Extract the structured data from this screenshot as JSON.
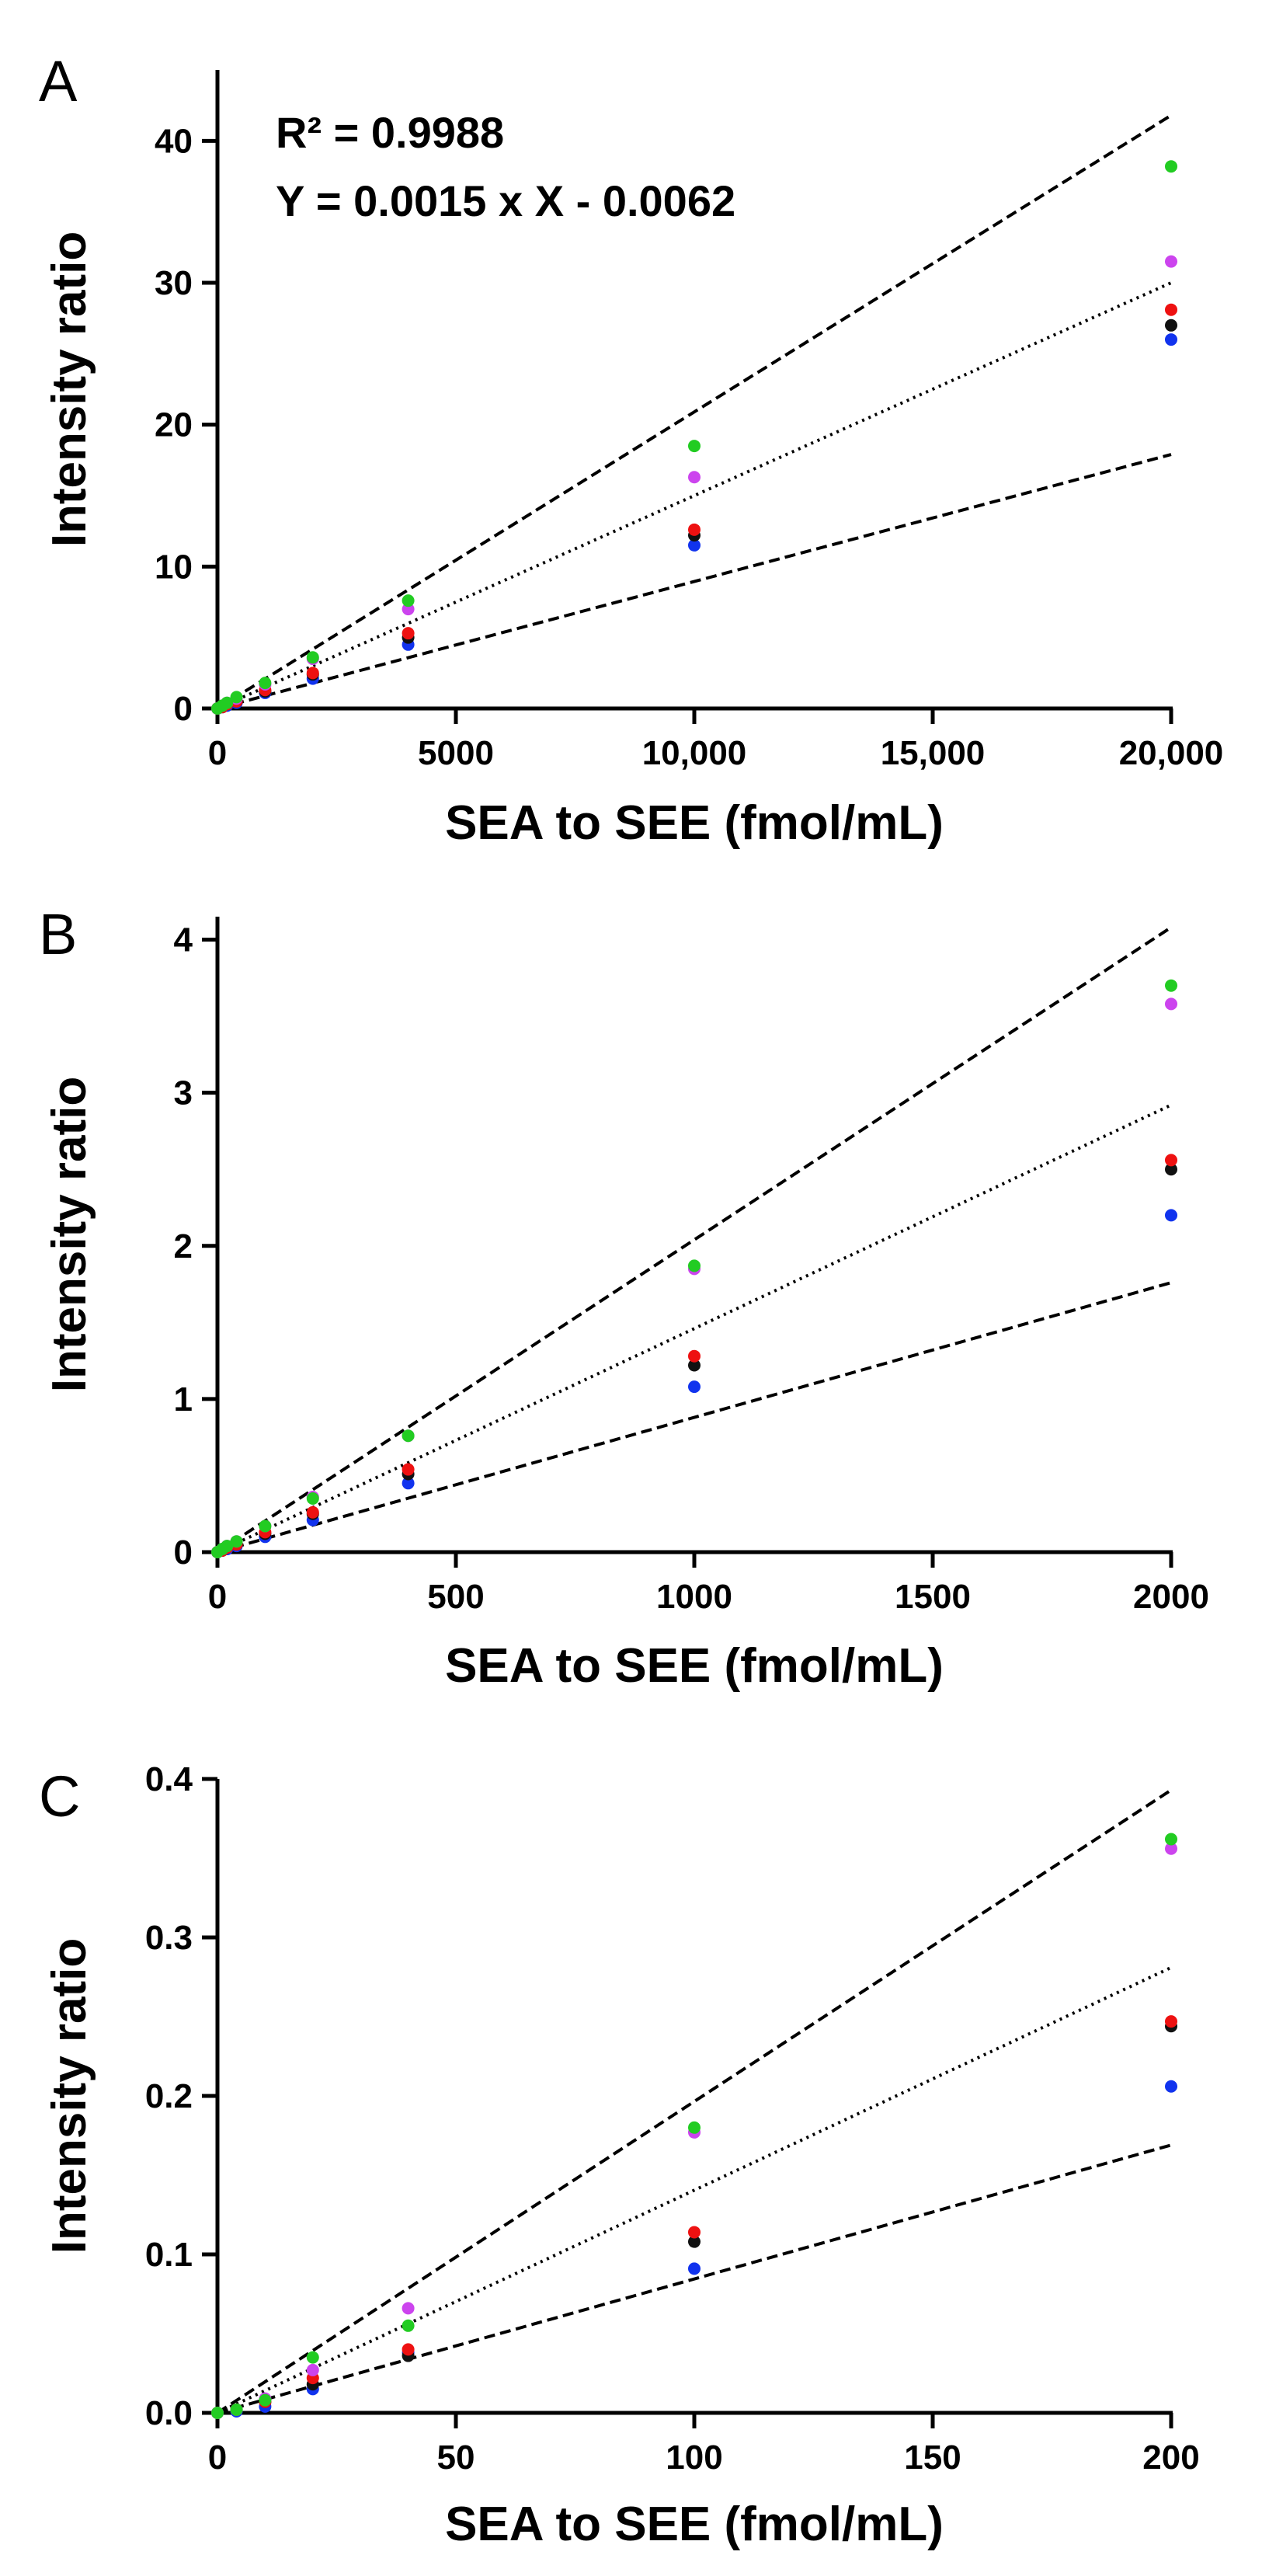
{
  "chart_data": [
    {
      "type": "scatter",
      "panel_label": "A",
      "xlabel": "SEA to SEE (fmol/mL)",
      "ylabel": "Intensity ratio",
      "xlim": [
        0,
        20000
      ],
      "ylim": [
        0,
        45
      ],
      "xticks": [
        0,
        5000,
        10000,
        15000,
        20000
      ],
      "xtick_labels": [
        "0",
        "5000",
        "10,000",
        "15,000",
        "20,000"
      ],
      "yticks": [
        0,
        10,
        20,
        30,
        40
      ],
      "ytick_labels": [
        "0",
        "10",
        "20",
        "30",
        "40"
      ],
      "annotations": [
        "R² = 0.9988",
        "Y = 0.0015 x X - 0.0062"
      ],
      "fit_lines": [
        {
          "style": "dashed",
          "points": [
            [
              0,
              0
            ],
            [
              20000,
              41.8
            ]
          ]
        },
        {
          "style": "dotted",
          "points": [
            [
              0,
              0
            ],
            [
              20000,
              30.0
            ]
          ]
        },
        {
          "style": "dashed",
          "points": [
            [
              0,
              0
            ],
            [
              20000,
              17.9
            ]
          ]
        }
      ],
      "series": [
        {
          "color": "#22cc22",
          "x": [
            0,
            100,
            200,
            400,
            1000,
            2000,
            4000,
            10000,
            20000
          ],
          "y": [
            0,
            0.2,
            0.4,
            0.8,
            1.8,
            3.6,
            7.6,
            18.5,
            38.2
          ]
        },
        {
          "color": "#cc44ee",
          "x": [
            0,
            100,
            200,
            400,
            1000,
            2000,
            4000,
            10000,
            20000
          ],
          "y": [
            0,
            0.2,
            0.4,
            0.7,
            1.7,
            3.5,
            7.0,
            16.3,
            31.5
          ]
        },
        {
          "color": "#ee1111",
          "x": [
            0,
            100,
            200,
            400,
            1000,
            2000,
            4000,
            10000,
            20000
          ],
          "y": [
            0,
            0.1,
            0.3,
            0.5,
            1.3,
            2.5,
            5.3,
            12.6,
            28.1
          ]
        },
        {
          "color": "#111111",
          "x": [
            0,
            100,
            200,
            400,
            1000,
            2000,
            4000,
            10000,
            20000
          ],
          "y": [
            0,
            0.1,
            0.3,
            0.5,
            1.2,
            2.4,
            5.0,
            12.2,
            27.0
          ]
        },
        {
          "color": "#1133ee",
          "x": [
            0,
            100,
            200,
            400,
            1000,
            2000,
            4000,
            10000,
            20000
          ],
          "y": [
            0,
            0.1,
            0.2,
            0.4,
            1.1,
            2.1,
            4.5,
            11.5,
            26.0
          ]
        }
      ]
    },
    {
      "type": "scatter",
      "panel_label": "B",
      "xlabel": "SEA to SEE (fmol/mL)",
      "ylabel": "Intensity ratio",
      "xlim": [
        0,
        2000
      ],
      "ylim": [
        0,
        4.15
      ],
      "xticks": [
        0,
        500,
        1000,
        1500,
        2000
      ],
      "xtick_labels": [
        "0",
        "500",
        "1000",
        "1500",
        "2000"
      ],
      "yticks": [
        0,
        1,
        2,
        3,
        4
      ],
      "ytick_labels": [
        "0",
        "1",
        "2",
        "3",
        "4"
      ],
      "fit_lines": [
        {
          "style": "dashed",
          "points": [
            [
              0,
              0
            ],
            [
              2000,
              4.08
            ]
          ]
        },
        {
          "style": "dotted",
          "points": [
            [
              0,
              0
            ],
            [
              2000,
              2.92
            ]
          ]
        },
        {
          "style": "dashed",
          "points": [
            [
              0,
              0
            ],
            [
              2000,
              1.76
            ]
          ]
        }
      ],
      "series": [
        {
          "color": "#22cc22",
          "x": [
            0,
            10,
            20,
            40,
            100,
            200,
            400,
            1000,
            2000
          ],
          "y": [
            0,
            0.02,
            0.04,
            0.07,
            0.17,
            0.35,
            0.76,
            1.87,
            3.7
          ]
        },
        {
          "color": "#cc44ee",
          "x": [
            0,
            10,
            20,
            40,
            100,
            200,
            400,
            1000,
            2000
          ],
          "y": [
            0,
            0.02,
            0.04,
            0.07,
            0.17,
            0.36,
            0.76,
            1.85,
            3.58
          ]
        },
        {
          "color": "#ee1111",
          "x": [
            0,
            10,
            20,
            40,
            100,
            200,
            400,
            1000,
            2000
          ],
          "y": [
            0,
            0.01,
            0.03,
            0.05,
            0.13,
            0.26,
            0.54,
            1.28,
            2.56
          ]
        },
        {
          "color": "#111111",
          "x": [
            0,
            10,
            20,
            40,
            100,
            200,
            400,
            1000,
            2000
          ],
          "y": [
            0,
            0.01,
            0.03,
            0.05,
            0.12,
            0.25,
            0.51,
            1.22,
            2.5
          ]
        },
        {
          "color": "#1133ee",
          "x": [
            0,
            10,
            20,
            40,
            100,
            200,
            400,
            1000,
            2000
          ],
          "y": [
            0,
            0.01,
            0.02,
            0.04,
            0.1,
            0.21,
            0.45,
            1.08,
            2.2
          ]
        }
      ]
    },
    {
      "type": "scatter",
      "panel_label": "C",
      "xlabel": "SEA to SEE (fmol/mL)",
      "ylabel": "Intensity ratio",
      "xlim": [
        0,
        200
      ],
      "ylim": [
        0,
        0.4
      ],
      "xticks": [
        0,
        50,
        100,
        150,
        200
      ],
      "xtick_labels": [
        "0",
        "50",
        "100",
        "150",
        "200"
      ],
      "yticks": [
        0,
        0.1,
        0.2,
        0.3,
        0.4
      ],
      "ytick_labels": [
        "0.0",
        "0.1",
        "0.2",
        "0.3",
        "0.4"
      ],
      "fit_lines": [
        {
          "style": "dashed",
          "points": [
            [
              0,
              0
            ],
            [
              200,
              0.393
            ]
          ]
        },
        {
          "style": "dotted",
          "points": [
            [
              0,
              0
            ],
            [
              200,
              0.281
            ]
          ]
        },
        {
          "style": "dashed",
          "points": [
            [
              0,
              0
            ],
            [
              200,
              0.169
            ]
          ]
        }
      ],
      "series": [
        {
          "color": "#22cc22",
          "x": [
            0,
            4,
            10,
            20,
            40,
            100,
            200
          ],
          "y": [
            0,
            0.002,
            0.008,
            0.035,
            0.055,
            0.18,
            0.362
          ]
        },
        {
          "color": "#cc44ee",
          "x": [
            0,
            4,
            10,
            20,
            40,
            100,
            200
          ],
          "y": [
            0,
            0.002,
            0.009,
            0.027,
            0.066,
            0.177,
            0.356
          ]
        },
        {
          "color": "#ee1111",
          "x": [
            0,
            4,
            10,
            20,
            40,
            100,
            200
          ],
          "y": [
            0,
            0.002,
            0.007,
            0.022,
            0.04,
            0.114,
            0.247
          ]
        },
        {
          "color": "#111111",
          "x": [
            0,
            4,
            10,
            20,
            40,
            100,
            200
          ],
          "y": [
            0,
            0.002,
            0.007,
            0.018,
            0.036,
            0.108,
            0.244
          ]
        },
        {
          "color": "#1133ee",
          "x": [
            0,
            4,
            10,
            20,
            40,
            100,
            200
          ],
          "y": [
            0,
            0.001,
            0.004,
            0.015,
            0.038,
            0.091,
            0.206
          ]
        }
      ]
    }
  ]
}
